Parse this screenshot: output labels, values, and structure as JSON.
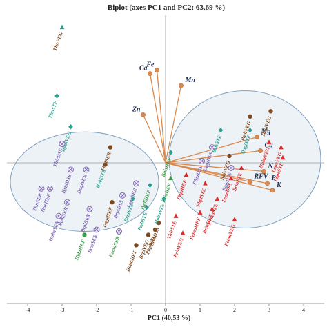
{
  "chart_data": {
    "type": "scatter",
    "title": "Biplot (axes PC1 and PC2: 63,69 %)",
    "xlabel": "PC1 (40,53 %)",
    "ylabel": "",
    "xlim": [
      -4.6,
      4.6
    ],
    "ylim": [
      -4.1,
      4.3
    ],
    "xticks": [
      -4,
      -3,
      -2,
      -1,
      0,
      1,
      2,
      3,
      4
    ],
    "grid": false,
    "colors": {
      "variable": "#d9894e",
      "variable_label": "#1f2f4f",
      "STE": "#2e9f8f",
      "SER": "#7c65b0",
      "DSS": "#7c65b0",
      "VEG": "#7b4a22",
      "HEF": "#3b9a4a",
      "group_right": "#d92c2c",
      "ellipse_fill": "#dfe7f0",
      "ellipse_stroke": "#7f9fbf"
    },
    "ellipses": [
      {
        "cx": -2.35,
        "cy": -0.55,
        "rx": 2.15,
        "ry": 1.45
      },
      {
        "cx": 2.3,
        "cy": 0.1,
        "rx": 2.2,
        "ry": 2.0
      }
    ],
    "variables": [
      {
        "name": "Ca",
        "x": -0.45,
        "y": 2.6
      },
      {
        "name": "Fe",
        "x": -0.25,
        "y": 2.7
      },
      {
        "name": "Mn",
        "x": 0.45,
        "y": 2.25
      },
      {
        "name": "Zn",
        "x": -0.65,
        "y": 1.4
      },
      {
        "name": "Mg",
        "x": 2.65,
        "y": 0.75
      },
      {
        "name": "Cu",
        "x": 2.75,
        "y": 0.35
      },
      {
        "name": "N",
        "x": 2.85,
        "y": -0.25
      },
      {
        "name": "RFV",
        "x": 2.45,
        "y": -0.55
      },
      {
        "name": "P",
        "x": 2.95,
        "y": -0.6
      },
      {
        "name": "K",
        "x": 3.1,
        "y": -0.8
      }
    ],
    "observations": [
      {
        "label": "ThnVEG",
        "x": -3.0,
        "y": 3.95,
        "marker": "triangle",
        "group": "STE",
        "label_group": "VEG"
      },
      {
        "label": "ThnSTE",
        "x": -3.15,
        "y": 1.95,
        "marker": "diamond",
        "group": "STE",
        "label_group": "STE"
      },
      {
        "label": "HybiVEG",
        "x": -2.75,
        "y": 1.05,
        "marker": "diamond",
        "group": "STE",
        "label_group": "STE"
      },
      {
        "label": "ThirDSS",
        "x": -3.0,
        "y": 0.55,
        "marker": "crossed",
        "group": "SER",
        "label_group": "SER"
      },
      {
        "label": "HybiDSS",
        "x": -2.75,
        "y": -0.2,
        "marker": "crossed",
        "group": "SER",
        "label_group": "SER"
      },
      {
        "label": "DaqiSER",
        "x": -2.3,
        "y": -0.2,
        "marker": "crossed",
        "group": "SER",
        "label_group": "SER"
      },
      {
        "label": "HybiSTE",
        "x": -1.75,
        "y": -0.05,
        "marker": "dot",
        "group": "VEG",
        "label_group": "STE"
      },
      {
        "label": "PhplSER",
        "x": -1.6,
        "y": 0.45,
        "marker": "dot",
        "group": "VEG",
        "label_group": "VEG"
      },
      {
        "label": "ThnSER",
        "x": -3.6,
        "y": -0.75,
        "marker": "crossed",
        "group": "SER",
        "label_group": "SER"
      },
      {
        "label": "ThirHEF",
        "x": -3.35,
        "y": -0.75,
        "marker": "crossed",
        "group": "SER",
        "label_group": "SER"
      },
      {
        "label": "PadiSER",
        "x": -2.85,
        "y": -1.15,
        "marker": "crossed",
        "group": "SER",
        "label_group": "SER"
      },
      {
        "label": "HobaSER",
        "x": -3.1,
        "y": -1.55,
        "marker": "crossed",
        "group": "SER",
        "label_group": "SER"
      },
      {
        "label": "BrpiSER",
        "x": -2.2,
        "y": -1.35,
        "marker": "crossed",
        "group": "SER",
        "label_group": "SER"
      },
      {
        "label": "BaisSER",
        "x": -2.0,
        "y": -1.95,
        "marker": "crossed",
        "group": "SER",
        "label_group": "SER"
      },
      {
        "label": "HybiHEF",
        "x": -2.35,
        "y": -2.1,
        "marker": "dot",
        "group": "HEF",
        "label_group": "HEF"
      },
      {
        "label": "DagiDSS",
        "x": 1.35,
        "y": 0.45,
        "marker": "crossed",
        "group": "SER",
        "label_group": "SER"
      },
      {
        "label": "BaisSTE",
        "x": 1.6,
        "y": 0.95,
        "marker": "diamond",
        "group": "STE",
        "label_group": "STE"
      },
      {
        "label": "PadiVEG",
        "x": 2.45,
        "y": 1.35,
        "marker": "dot",
        "group": "VEG",
        "label_group": "VEG"
      },
      {
        "label": "DagiSTE",
        "x": 2.45,
        "y": 0.95,
        "marker": "diamond",
        "group": "STE",
        "label_group": "STE"
      },
      {
        "label": "DagiVEG",
        "x": 3.05,
        "y": 1.5,
        "marker": "dot",
        "group": "VEG",
        "label_group": "VEG"
      },
      {
        "label": "BaisVEG",
        "x": 1.85,
        "y": 0.2,
        "marker": "dot",
        "group": "VEG",
        "label_group": "VEG"
      },
      {
        "label": "BaisDSS",
        "x": 1.9,
        "y": -0.15,
        "marker": "crossed",
        "group": "SER",
        "label_group": "SER"
      },
      {
        "label": "PhplDSS",
        "x": 1.05,
        "y": 0.05,
        "marker": "crossed",
        "group": "SER",
        "label_group": "SER"
      },
      {
        "label": "LopeSER",
        "x": -0.85,
        "y": -0.6,
        "marker": "crossed",
        "group": "SER",
        "label_group": "SER"
      },
      {
        "label": "HobaVEG",
        "x": 3.0,
        "y": 0.6,
        "marker": "triangle",
        "group": "red",
        "label_group": "red"
      },
      {
        "label": "LopeVEG",
        "x": 3.35,
        "y": 0.45,
        "marker": "triangle",
        "group": "red",
        "label_group": "red"
      },
      {
        "label": "LopeSTE",
        "x": 3.4,
        "y": 0.15,
        "marker": "triangle",
        "group": "red",
        "label_group": "red"
      },
      {
        "label": "BrinSTE",
        "x": 2.2,
        "y": -0.15,
        "marker": "triangle",
        "group": "red",
        "label_group": "red"
      },
      {
        "label": "LopeDSS",
        "x": 1.9,
        "y": -0.45,
        "marker": "triangle",
        "group": "red",
        "label_group": "red"
      },
      {
        "label": "PhplHEF",
        "x": 0.6,
        "y": -0.35,
        "marker": "triangle",
        "group": "red",
        "label_group": "red"
      },
      {
        "label": "PhplSTE",
        "x": 1.15,
        "y": -0.6,
        "marker": "triangle",
        "group": "red",
        "label_group": "red"
      },
      {
        "label": "BaisHEF",
        "x": 0.15,
        "y": -0.45,
        "marker": "triangle",
        "group": "HEF",
        "label_group": "HEF"
      },
      {
        "label": "BrinHEF",
        "x": 1.35,
        "y": -1.35,
        "marker": "triangle",
        "group": "red",
        "label_group": "red"
      },
      {
        "label": "FemaSTE",
        "x": 1.5,
        "y": -1.05,
        "marker": "triangle",
        "group": "red",
        "label_group": "red"
      },
      {
        "label": "FemaVEG",
        "x": 2.0,
        "y": -1.65,
        "marker": "triangle",
        "group": "red",
        "label_group": "red"
      },
      {
        "label": "FemuHEF",
        "x": 1.0,
        "y": -1.45,
        "marker": "triangle",
        "group": "red",
        "label_group": "red"
      },
      {
        "label": "ThirSTE",
        "x": 0.3,
        "y": -1.55,
        "marker": "triangle",
        "group": "red",
        "label_group": "red"
      },
      {
        "label": "BrinVEG",
        "x": 0.5,
        "y": -2.05,
        "marker": "triangle",
        "group": "red",
        "label_group": "red"
      },
      {
        "label": "BrinDSS",
        "x": -0.2,
        "y": -1.75,
        "marker": "dot",
        "group": "VEG",
        "label_group": "VEG"
      },
      {
        "label": "PhplVEG",
        "x": -0.3,
        "y": -1.95,
        "marker": "dot",
        "group": "VEG",
        "label_group": "VEG"
      },
      {
        "label": "BrpiVEG",
        "x": -0.5,
        "y": -2.1,
        "marker": "dot",
        "group": "VEG",
        "label_group": "VEG"
      },
      {
        "label": "HobaHEF",
        "x": -0.85,
        "y": -2.4,
        "marker": "dot",
        "group": "VEG",
        "label_group": "VEG"
      },
      {
        "label": "BrpiDSS",
        "x": -1.25,
        "y": -0.95,
        "marker": "crossed",
        "group": "SER",
        "label_group": "SER"
      },
      {
        "label": "DagiHEF",
        "x": -1.55,
        "y": -1.15,
        "marker": "dot",
        "group": "VEG",
        "label_group": "VEG"
      },
      {
        "label": "BrpiSTE",
        "x": -0.95,
        "y": -1.05,
        "marker": "diamond",
        "group": "STE",
        "label_group": "STE"
      },
      {
        "label": "PadiHEF",
        "x": -0.45,
        "y": -0.65,
        "marker": "diamond",
        "group": "STE",
        "label_group": "HEF"
      },
      {
        "label": "BaisDSS2",
        "x": 0.15,
        "y": 0.3,
        "marker": "diamond",
        "group": "STE",
        "label_group": "HEF",
        "display": "BaisHEF"
      },
      {
        "label": "FemaSER",
        "x": -1.35,
        "y": -2.0,
        "marker": "crossed",
        "group": "SER",
        "label_group": "HEF"
      },
      {
        "label": "PadiSTE",
        "x": -0.55,
        "y": -1.3,
        "marker": "diamond",
        "group": "STE",
        "label_group": "STE"
      },
      {
        "label": "HobaSTE",
        "x": -0.05,
        "y": -1.05,
        "marker": "diamond",
        "group": "STE",
        "label_group": "STE"
      }
    ]
  }
}
